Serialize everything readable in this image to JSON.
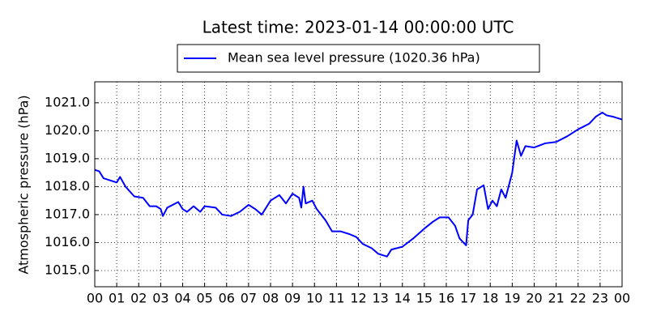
{
  "chart_data": {
    "type": "line",
    "title": "Latest time: 2023-01-14 00:00:00 UTC",
    "y_label": "Atmospheric pressure (hPa)",
    "grid": true,
    "legend": "upper center",
    "xlim": [
      0,
      24
    ],
    "xticks": [
      {
        "value": 0,
        "label": "00"
      },
      {
        "value": 1,
        "label": "01"
      },
      {
        "value": 2,
        "label": "02"
      },
      {
        "value": 3,
        "label": "03"
      },
      {
        "value": 4,
        "label": "04"
      },
      {
        "value": 5,
        "label": "05"
      },
      {
        "value": 6,
        "label": "06"
      },
      {
        "value": 7,
        "label": "07"
      },
      {
        "value": 8,
        "label": "08"
      },
      {
        "value": 9,
        "label": "09"
      },
      10,
      11,
      12,
      13,
      14,
      15,
      16,
      17,
      18,
      19,
      20,
      21,
      22,
      23,
      {
        "value": 24,
        "label": "00"
      }
    ],
    "ylim": [
      1014.42,
      1021.75
    ],
    "yticks": [
      {
        "value": 1015,
        "label": "1015.0"
      },
      {
        "value": 1016,
        "label": "1016.0"
      },
      {
        "value": 1017,
        "label": "1017.0"
      },
      {
        "value": 1018,
        "label": "1018.0"
      },
      {
        "value": 1019,
        "label": "1019.0"
      },
      {
        "value": 1020,
        "label": "1020.0"
      },
      {
        "value": 1021,
        "label": "1021.0"
      }
    ],
    "x": [
      0,
      0.2,
      0.4,
      0.8,
      1.0,
      1.15,
      1.4,
      1.8,
      2.2,
      2.5,
      2.8,
      3.0,
      3.1,
      3.3,
      3.8,
      4.0,
      4.2,
      4.5,
      4.8,
      5.0,
      5.5,
      5.8,
      6.2,
      6.6,
      7.0,
      7.3,
      7.6,
      8.0,
      8.4,
      8.7,
      9.0,
      9.3,
      9.4,
      9.5,
      9.6,
      9.9,
      10.1,
      10.5,
      10.8,
      11.2,
      11.6,
      11.9,
      12.2,
      12.6,
      12.9,
      13.3,
      13.5,
      14.0,
      14.5,
      15.0,
      15.4,
      15.7,
      16.1,
      16.4,
      16.6,
      16.9,
      17.0,
      17.2,
      17.4,
      17.7,
      17.9,
      18.1,
      18.3,
      18.5,
      18.7,
      18.9,
      19.0,
      19.2,
      19.4,
      19.6,
      20.0,
      20.5,
      21.0,
      21.5,
      22.0,
      22.5,
      22.8,
      23.1,
      23.3,
      23.6,
      24.0
    ],
    "series": [
      {
        "name": "Mean sea level pressure (1020.36 hPa)",
        "color": "#0000ff",
        "values": [
          1018.6,
          1018.55,
          1018.3,
          1018.2,
          1018.15,
          1018.35,
          1018.0,
          1017.65,
          1017.6,
          1017.3,
          1017.3,
          1017.2,
          1016.95,
          1017.25,
          1017.45,
          1017.2,
          1017.1,
          1017.3,
          1017.1,
          1017.3,
          1017.25,
          1017.0,
          1016.95,
          1017.1,
          1017.35,
          1017.2,
          1017.0,
          1017.5,
          1017.7,
          1017.4,
          1017.75,
          1017.6,
          1017.25,
          1018.0,
          1017.4,
          1017.5,
          1017.2,
          1016.8,
          1016.4,
          1016.4,
          1016.3,
          1016.2,
          1015.95,
          1015.8,
          1015.6,
          1015.5,
          1015.75,
          1015.85,
          1016.15,
          1016.5,
          1016.75,
          1016.9,
          1016.9,
          1016.6,
          1016.15,
          1015.9,
          1016.8,
          1017.0,
          1017.9,
          1018.05,
          1017.2,
          1017.5,
          1017.3,
          1017.9,
          1017.6,
          1018.2,
          1018.5,
          1019.65,
          1019.1,
          1019.45,
          1019.4,
          1019.55,
          1019.6,
          1019.8,
          1020.05,
          1020.25,
          1020.5,
          1020.65,
          1020.55,
          1020.5,
          1020.4
        ]
      }
    ]
  }
}
